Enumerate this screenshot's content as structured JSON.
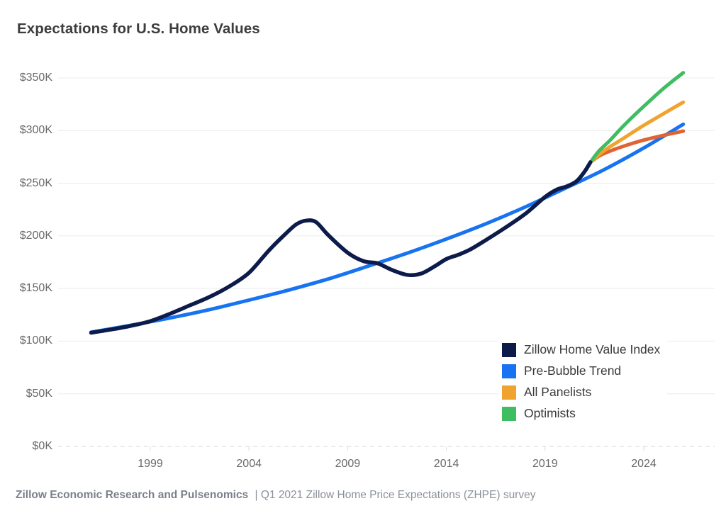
{
  "header": {
    "title": "Expectations for U.S. Home Values"
  },
  "footer": {
    "source": "Zillow Economic Research and Pulsenomics",
    "note": "| Q1 2021 Zillow Home Price Expectations (ZHPE) survey"
  },
  "chart_data": {
    "type": "line",
    "title": "Expectations for U.S. Home Values",
    "xlabel": "",
    "ylabel": "",
    "unit": "USD thousands",
    "grid": "horizontal",
    "legend_position": "inside-bottom-right",
    "x_axis": {
      "tick_labels": [
        "1999",
        "2004",
        "2009",
        "2014",
        "2019",
        "2024"
      ],
      "tick_values": [
        1999,
        2004,
        2009,
        2014,
        2019,
        2024
      ],
      "range": [
        1995.3,
        2026.6
      ]
    },
    "y_axis": {
      "tick_labels": [
        "$0K",
        "$50K",
        "$100K",
        "$150K",
        "$200K",
        "$250K",
        "$300K",
        "$350K"
      ],
      "tick_values": [
        0,
        50,
        100,
        150,
        200,
        250,
        300,
        350
      ],
      "range": [
        0,
        350
      ],
      "zero_line_style": "dashed"
    },
    "series": [
      {
        "name": "Zillow Home Value Index",
        "slug": "zhvi-line",
        "color": "#0d1b4a",
        "in_legend": true,
        "points": [
          [
            1996,
            108
          ],
          [
            1997,
            111
          ],
          [
            1998,
            114.5
          ],
          [
            1999,
            119
          ],
          [
            2000,
            126
          ],
          [
            2001,
            134
          ],
          [
            2002,
            142
          ],
          [
            2003,
            152
          ],
          [
            2004,
            165
          ],
          [
            2005,
            186
          ],
          [
            2005.8,
            201
          ],
          [
            2006.4,
            211
          ],
          [
            2006.9,
            214.5
          ],
          [
            2007.4,
            213
          ],
          [
            2008,
            201
          ],
          [
            2009,
            184
          ],
          [
            2009.8,
            176
          ],
          [
            2010.5,
            174
          ],
          [
            2011.2,
            168
          ],
          [
            2012,
            163
          ],
          [
            2012.7,
            164
          ],
          [
            2013.4,
            171
          ],
          [
            2014,
            178
          ],
          [
            2014.6,
            182
          ],
          [
            2015.2,
            187
          ],
          [
            2016,
            196
          ],
          [
            2017,
            208
          ],
          [
            2018,
            221
          ],
          [
            2019,
            237
          ],
          [
            2019.6,
            244
          ],
          [
            2020.1,
            247
          ],
          [
            2020.6,
            252
          ],
          [
            2021,
            261
          ],
          [
            2021.3,
            270
          ]
        ]
      },
      {
        "name": "Pre-Bubble Trend",
        "slug": "pre-bubble-trend-line",
        "color": "#1773f1",
        "in_legend": true,
        "points": [
          [
            1996,
            108.5
          ],
          [
            1998,
            115
          ],
          [
            2000,
            122
          ],
          [
            2002,
            130
          ],
          [
            2004,
            139
          ],
          [
            2006,
            148.5
          ],
          [
            2008,
            159
          ],
          [
            2010,
            171
          ],
          [
            2012,
            183.5
          ],
          [
            2014,
            197
          ],
          [
            2016,
            211.5
          ],
          [
            2018,
            227.5
          ],
          [
            2020,
            245
          ],
          [
            2022,
            263
          ],
          [
            2024,
            283.5
          ],
          [
            2026,
            306
          ]
        ]
      },
      {
        "name": "All Panelists",
        "slug": "all-panelists-line",
        "color": "#f0a32e",
        "in_legend": true,
        "points": [
          [
            2021.3,
            270
          ],
          [
            2022,
            281
          ],
          [
            2023,
            293
          ],
          [
            2024,
            305
          ],
          [
            2025,
            316
          ],
          [
            2026,
            327
          ]
        ]
      },
      {
        "name": "Optimists",
        "slug": "optimists-line",
        "color": "#3fbd61",
        "in_legend": true,
        "points": [
          [
            2021.3,
            270
          ],
          [
            2021.7,
            280
          ],
          [
            2022.3,
            291
          ],
          [
            2023,
            305
          ],
          [
            2024,
            323
          ],
          [
            2025,
            340
          ],
          [
            2026,
            355
          ]
        ]
      },
      {
        "name": "",
        "slug": "unlabeled-forecast-line",
        "color": "#de6335",
        "in_legend": false,
        "points": [
          [
            2021.3,
            270
          ],
          [
            2021.8,
            276.5
          ],
          [
            2022.5,
            282
          ],
          [
            2023.2,
            286.5
          ],
          [
            2024,
            291
          ],
          [
            2025,
            295.5
          ],
          [
            2026,
            299.5
          ]
        ]
      }
    ]
  }
}
